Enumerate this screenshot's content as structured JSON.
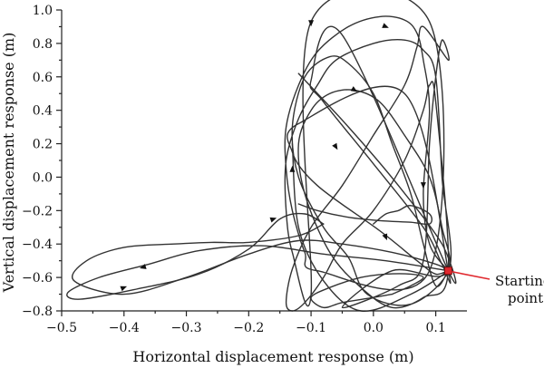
{
  "chart_data": {
    "type": "line",
    "title": "",
    "xlabel": "Horizontal displacement response (m)",
    "ylabel": "Vertical displacement response (m)",
    "xlim": [
      -0.5,
      0.15
    ],
    "ylim": [
      -0.8,
      1.0
    ],
    "x_ticks": [
      -0.5,
      -0.4,
      -0.3,
      -0.2,
      -0.1,
      0.0,
      0.1
    ],
    "x_tick_labels": [
      "−0.5",
      "−0.4",
      "−0.3",
      "−0.2",
      "−0.1",
      "0.0",
      "0.1"
    ],
    "y_ticks": [
      -0.8,
      -0.6,
      -0.4,
      -0.2,
      0.0,
      0.2,
      0.4,
      0.6,
      0.8,
      1.0
    ],
    "y_tick_labels": [
      "−0.8",
      "−0.6",
      "−0.4",
      "−0.2",
      "0.0",
      "0.2",
      "0.4",
      "0.6",
      "0.8",
      "1.0"
    ],
    "grid": false,
    "line_color": "#333333",
    "start_marker_color": "#e0282e",
    "starting_point": {
      "x": 0.12,
      "y": -0.56,
      "label_line1": "Starting",
      "label_line2": "point"
    },
    "series": [
      {
        "role": "excursion",
        "x": [
          0.12,
          0.02,
          -0.08,
          -0.18,
          -0.28,
          -0.36,
          -0.44,
          -0.49,
          -0.47,
          -0.38,
          -0.28,
          -0.2,
          -0.15,
          -0.11,
          -0.08
        ],
        "y": [
          -0.56,
          -0.5,
          -0.46,
          -0.41,
          -0.44,
          -0.52,
          -0.6,
          -0.69,
          -0.73,
          -0.67,
          -0.58,
          -0.43,
          -0.25,
          -0.22,
          -0.28
        ]
      },
      {
        "role": "return",
        "x": [
          -0.08,
          -0.12,
          -0.2,
          -0.26,
          -0.32,
          -0.4,
          -0.46,
          -0.48,
          -0.4,
          -0.3,
          -0.2,
          -0.12,
          -0.05,
          0.03,
          0.1,
          0.12
        ],
        "y": [
          -0.28,
          -0.35,
          -0.39,
          -0.39,
          -0.4,
          -0.42,
          -0.5,
          -0.62,
          -0.7,
          -0.6,
          -0.46,
          -0.38,
          -0.4,
          -0.45,
          -0.52,
          -0.56
        ]
      },
      {
        "role": "orbits",
        "x": [
          0.12,
          0.09,
          0.08,
          0.09,
          0.08,
          0.07,
          0.05,
          0.01,
          -0.04,
          -0.09,
          -0.12,
          -0.14,
          -0.14,
          -0.13,
          -0.11,
          -0.09,
          0.09,
          0.09,
          -0.1,
          -0.1,
          -0.13,
          -0.14,
          -0.14,
          -0.12,
          -0.09,
          -0.06,
          0.0,
          0.05,
          0.08,
          0.1,
          0.11,
          0.12,
          0.03,
          -0.05,
          0.04,
          0.08,
          0.09,
          0.1,
          0.11,
          0.12,
          0.08,
          0.07,
          0.05,
          0.0,
          -0.05,
          -0.1,
          -0.13,
          -0.14,
          -0.13,
          -0.11,
          -0.08,
          -0.05,
          0.0,
          0.05,
          0.08,
          0.09,
          0.1,
          0.12,
          0.08,
          0.03,
          -0.02,
          -0.07,
          -0.11,
          -0.12,
          -0.1,
          -0.07,
          -0.03,
          0.01,
          0.05,
          0.09,
          0.11,
          0.12,
          0.06,
          -0.01,
          -0.04,
          -0.08,
          -0.12,
          -0.13,
          -0.11,
          -0.07,
          -0.04,
          0.0,
          0.03,
          0.06,
          0.08,
          0.1,
          0.12
        ],
        "y": [
          -0.56,
          -0.4,
          -0.1,
          0.4,
          0.7,
          0.86,
          0.94,
          0.96,
          0.9,
          0.75,
          0.55,
          0.3,
          0.05,
          -0.2,
          -0.45,
          -0.56,
          -0.56,
          0.93,
          0.93,
          -0.7,
          -0.45,
          -0.2,
          0.1,
          0.35,
          0.55,
          0.7,
          0.8,
          0.82,
          0.76,
          0.6,
          0.0,
          -0.56,
          -0.56,
          -0.78,
          -0.65,
          -0.5,
          0.2,
          0.6,
          0.82,
          0.7,
          0.9,
          0.78,
          0.55,
          0.25,
          -0.05,
          -0.3,
          -0.55,
          -0.75,
          -0.8,
          -0.75,
          -0.6,
          -0.4,
          -0.2,
          0.1,
          0.4,
          0.55,
          0.45,
          -0.56,
          -0.72,
          -0.78,
          -0.66,
          -0.45,
          -0.1,
          0.2,
          0.4,
          0.5,
          0.52,
          0.45,
          0.25,
          0.0,
          -0.3,
          -0.56,
          -0.76,
          -0.7,
          -0.48,
          -0.3,
          0.0,
          0.3,
          0.6,
          0.72,
          0.68,
          0.5,
          0.2,
          -0.1,
          -0.4,
          -0.65,
          -0.56
        ]
      },
      {
        "role": "diagonals",
        "x": [
          -0.12,
          -0.04,
          0.04,
          0.11,
          0.12,
          -0.05,
          -0.1,
          -0.08,
          0.0,
          0.08,
          0.11,
          0.12,
          0.05,
          -0.12,
          -0.13,
          -0.09,
          0.01,
          0.07,
          0.1,
          0.12,
          0.06,
          -0.02,
          -0.08,
          -0.12,
          -0.13
        ],
        "y": [
          0.62,
          0.3,
          -0.05,
          -0.4,
          -0.56,
          0.85,
          0.58,
          0.45,
          0.08,
          -0.3,
          -0.52,
          -0.56,
          0.5,
          0.32,
          0.15,
          -0.05,
          -0.32,
          -0.5,
          -0.58,
          -0.56,
          -0.7,
          -0.8,
          -0.62,
          -0.3,
          0.2
        ]
      },
      {
        "role": "inner-spur",
        "x": [
          -0.12,
          -0.09,
          -0.04,
          0.01,
          0.06,
          0.09,
          0.09,
          0.06,
          0.04,
          0.02,
          0.0
        ],
        "y": [
          -0.16,
          -0.2,
          -0.24,
          -0.26,
          -0.27,
          -0.28,
          -0.22,
          -0.17,
          -0.2,
          -0.22,
          -0.28
        ]
      },
      {
        "role": "loop-top",
        "x": [
          0.03,
          0.06,
          0.08,
          0.06,
          0.02,
          -0.02,
          -0.07,
          -0.1,
          -0.08,
          -0.05,
          0.0,
          0.03
        ],
        "y": [
          -0.7,
          -0.65,
          -0.6,
          -0.58,
          -0.58,
          -0.6,
          -0.66,
          -0.72,
          -0.78,
          -0.75,
          -0.72,
          -0.7
        ]
      }
    ],
    "direction_arrows": [
      {
        "x": -0.16,
        "y": -0.25,
        "dx": 1,
        "dy": 0.35
      },
      {
        "x": -0.37,
        "y": -0.54,
        "dx": -1,
        "dy": -0.3
      },
      {
        "x": -0.4,
        "y": -0.66,
        "dx": 1,
        "dy": 0.4
      },
      {
        "x": 0.02,
        "y": 0.9,
        "dx": 1,
        "dy": -0.4
      },
      {
        "x": -0.03,
        "y": 0.52,
        "dx": 1,
        "dy": -0.6
      },
      {
        "x": -0.13,
        "y": 0.05,
        "dx": 0,
        "dy": 1
      },
      {
        "x": -0.06,
        "y": 0.18,
        "dx": 0.6,
        "dy": -1
      },
      {
        "x": 0.02,
        "y": -0.36,
        "dx": 0.4,
        "dy": -1
      },
      {
        "x": -0.1,
        "y": 0.92,
        "dx": 0,
        "dy": -1
      },
      {
        "x": 0.08,
        "y": -0.05,
        "dx": 0,
        "dy": -1
      }
    ]
  }
}
